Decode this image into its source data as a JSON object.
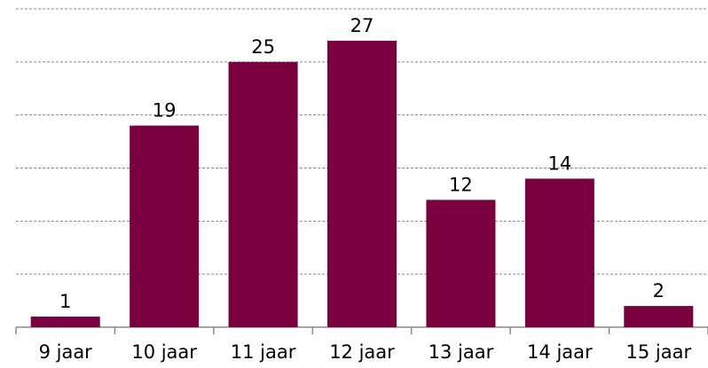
{
  "chart_data": {
    "type": "bar",
    "categories": [
      "9 jaar",
      "10 jaar",
      "11 jaar",
      "12 jaar",
      "13 jaar",
      "14 jaar",
      "15 jaar"
    ],
    "values": [
      1,
      19,
      25,
      27,
      12,
      14,
      2
    ],
    "color": "#7b0040",
    "ylim": [
      0,
      30
    ],
    "yticks": [
      0,
      5,
      10,
      15,
      20,
      25,
      30
    ],
    "grid": true
  }
}
